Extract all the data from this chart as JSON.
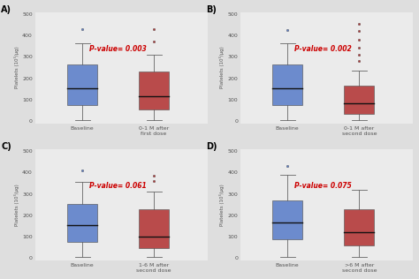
{
  "panels": [
    {
      "label": "A)",
      "pvalue": "P-value= 0.003",
      "xlabel1": "Baseline",
      "xlabel2": "0-1 M after\nfirst dose",
      "blue_box": {
        "Q1": 75,
        "median": 155,
        "Q3": 265,
        "whisker_low": 5,
        "whisker_high": 365,
        "outliers": [
          430
        ]
      },
      "red_box": {
        "Q1": 55,
        "median": 115,
        "Q3": 230,
        "whisker_low": 5,
        "whisker_high": 310,
        "outliers": [
          370,
          430
        ]
      },
      "ylim": [
        -10,
        510
      ],
      "yticks": [
        0,
        100,
        200,
        300,
        400,
        500
      ]
    },
    {
      "label": "B)",
      "pvalue": "P-value= 0.002",
      "xlabel1": "Baseline",
      "xlabel2": "0-1 M after\nsecond dose",
      "blue_box": {
        "Q1": 75,
        "median": 155,
        "Q3": 265,
        "whisker_low": 5,
        "whisker_high": 365,
        "outliers": [
          425
        ]
      },
      "red_box": {
        "Q1": 35,
        "median": 85,
        "Q3": 165,
        "whisker_low": 5,
        "whisker_high": 235,
        "outliers": [
          280,
          310,
          345,
          380,
          420,
          455
        ]
      },
      "ylim": [
        -10,
        510
      ],
      "yticks": [
        0,
        100,
        200,
        300,
        400,
        500
      ]
    },
    {
      "label": "C)",
      "pvalue": "P-value= 0.061",
      "xlabel1": "Baseline",
      "xlabel2": "1-6 M after\nsecond dose",
      "blue_box": {
        "Q1": 75,
        "median": 155,
        "Q3": 255,
        "whisker_low": 5,
        "whisker_high": 355,
        "outliers": [
          410
        ]
      },
      "red_box": {
        "Q1": 45,
        "median": 100,
        "Q3": 230,
        "whisker_low": 5,
        "whisker_high": 310,
        "outliers": [
          360,
          385
        ]
      },
      "ylim": [
        -10,
        510
      ],
      "yticks": [
        0,
        100,
        200,
        300,
        400,
        500
      ]
    },
    {
      "label": "D)",
      "pvalue": "P-value= 0.075",
      "xlabel1": "Baseline",
      "xlabel2": ">6 M after\nsecond dose",
      "blue_box": {
        "Q1": 90,
        "median": 165,
        "Q3": 270,
        "whisker_low": 5,
        "whisker_high": 390,
        "outliers": [
          430
        ]
      },
      "red_box": {
        "Q1": 60,
        "median": 120,
        "Q3": 230,
        "whisker_low": 5,
        "whisker_high": 320,
        "outliers": []
      },
      "ylim": [
        -10,
        510
      ],
      "yticks": [
        0,
        100,
        200,
        300,
        400,
        500
      ]
    }
  ],
  "blue_color": "#5B7EC9",
  "red_color": "#B33535",
  "bg_color": "#E8E8E8",
  "plot_bg": "#EBEBEB",
  "pvalue_color": "#CC0000",
  "ylabel": "Platelets (10³/μg)",
  "fig_bg": "#DEDEDE",
  "label_fontsize": 7,
  "pvalue_fontsize": 5.5,
  "tick_fontsize": 4.5,
  "xlabel_fontsize": 4.5
}
